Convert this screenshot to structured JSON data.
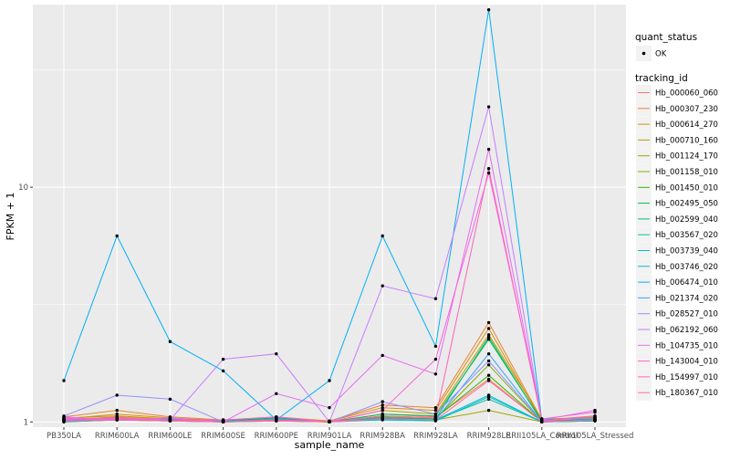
{
  "chart_data": {
    "type": "line",
    "title": "",
    "xlabel": "sample_name",
    "ylabel": "FPKM + 1",
    "y_scale": "log10",
    "ylim": [
      0.95,
      60
    ],
    "yticks": [
      1,
      10
    ],
    "ytick_labels": [
      "1",
      "10"
    ],
    "grid": true,
    "categories": [
      "PB350LA",
      "RRIM600LA",
      "RRIM600LE",
      "RRIM600SE",
      "RRIM600PE",
      "RRIM901LA",
      "RRIM928BA",
      "RRIM928LA",
      "RRIM928LE",
      "RRII105LA_Control",
      "RRII105LA_Stressed"
    ],
    "tick_labels": [
      "PB350LA",
      "RRIM600LA",
      "RRIM600LE",
      "RRIM600SE",
      "RRIM600PE",
      "RRIM901LA",
      "RRIM928BA",
      "RRIM928LA",
      "RRIM928LE",
      "RRII105LA_Control",
      "RRII105LA_Stressed"
    ],
    "legends": [
      {
        "title": "quant_status",
        "entries": [
          "OK"
        ]
      },
      {
        "title": "tracking_id",
        "entries": [
          "Hb_000060_060",
          "Hb_000307_230",
          "Hb_000614_270",
          "Hb_000710_160",
          "Hb_001124_170",
          "Hb_001158_010",
          "Hb_001450_010",
          "Hb_002495_050",
          "Hb_002599_040",
          "Hb_003567_020",
          "Hb_003739_040",
          "Hb_003746_020",
          "Hb_006474_010",
          "Hb_021374_020",
          "Hb_028527_010",
          "Hb_062192_060",
          "Hb_104735_010",
          "Hb_143004_010",
          "Hb_154997_010",
          "Hb_180367_010"
        ]
      }
    ],
    "series": [
      {
        "name": "Hb_000060_060",
        "color": "#F8766D",
        "values": [
          1.02,
          1.05,
          1.03,
          1.0,
          1.02,
          1.0,
          1.08,
          1.05,
          1.52,
          1.0,
          1.04
        ]
      },
      {
        "name": "Hb_000307_230",
        "color": "#EA8331",
        "values": [
          1.05,
          1.12,
          1.05,
          1.02,
          1.05,
          1.01,
          1.18,
          1.15,
          2.65,
          1.02,
          1.06
        ]
      },
      {
        "name": "Hb_000614_270",
        "color": "#D89000",
        "values": [
          1.03,
          1.08,
          1.04,
          1.01,
          1.04,
          1.01,
          1.15,
          1.12,
          2.5,
          1.01,
          1.05
        ]
      },
      {
        "name": "Hb_000710_160",
        "color": "#C09B00",
        "values": [
          1.04,
          1.06,
          1.03,
          1.02,
          1.03,
          1.0,
          1.12,
          1.08,
          2.35,
          1.03,
          1.04
        ]
      },
      {
        "name": "Hb_001124_170",
        "color": "#A3A500",
        "values": [
          1.0,
          1.02,
          1.01,
          1.0,
          1.01,
          1.0,
          1.03,
          1.02,
          1.12,
          1.0,
          1.01
        ]
      },
      {
        "name": "Hb_001158_010",
        "color": "#7CAE00",
        "values": [
          1.02,
          1.03,
          1.02,
          1.0,
          1.02,
          1.0,
          1.05,
          1.03,
          1.75,
          1.0,
          1.02
        ]
      },
      {
        "name": "Hb_001450_010",
        "color": "#39B600",
        "values": [
          1.01,
          1.02,
          1.02,
          1.01,
          1.03,
          1.0,
          1.06,
          1.04,
          1.58,
          1.0,
          1.02
        ]
      },
      {
        "name": "Hb_002495_050",
        "color": "#00BB4E",
        "values": [
          1.03,
          1.04,
          1.02,
          1.01,
          1.04,
          1.0,
          1.08,
          1.06,
          2.25,
          1.01,
          1.03
        ]
      },
      {
        "name": "Hb_002599_040",
        "color": "#00BF7D",
        "values": [
          1.02,
          1.03,
          1.02,
          1.0,
          1.02,
          1.0,
          1.04,
          1.03,
          2.3,
          1.0,
          1.02
        ]
      },
      {
        "name": "Hb_003567_020",
        "color": "#00C1A3",
        "values": [
          1.01,
          1.02,
          1.01,
          1.0,
          1.02,
          1.0,
          1.03,
          1.02,
          1.25,
          1.0,
          1.01
        ]
      },
      {
        "name": "Hb_003739_040",
        "color": "#00BFC4",
        "values": [
          1.0,
          1.02,
          1.01,
          1.0,
          1.01,
          1.0,
          1.02,
          1.01,
          1.28,
          1.0,
          1.01
        ]
      },
      {
        "name": "Hb_003746_020",
        "color": "#00BAE0",
        "values": [
          1.02,
          1.03,
          1.02,
          1.01,
          1.02,
          1.0,
          1.04,
          1.02,
          1.3,
          1.0,
          1.02
        ]
      },
      {
        "name": "Hb_006474_010",
        "color": "#00B0F6",
        "values": [
          1.5,
          6.2,
          2.2,
          1.65,
          1.02,
          1.5,
          6.2,
          2.1,
          57.0,
          1.02,
          1.04
        ]
      },
      {
        "name": "Hb_021374_020",
        "color": "#35A2FF",
        "values": [
          1.01,
          1.02,
          1.03,
          1.0,
          1.03,
          1.0,
          1.03,
          1.02,
          1.95,
          1.0,
          1.02
        ]
      },
      {
        "name": "Hb_028527_010",
        "color": "#9590FF",
        "values": [
          1.06,
          1.3,
          1.25,
          1.0,
          1.02,
          1.0,
          1.22,
          1.08,
          1.82,
          1.0,
          1.02
        ]
      },
      {
        "name": "Hb_062192_060",
        "color": "#C77CFF",
        "values": [
          1.04,
          1.02,
          1.02,
          1.85,
          1.95,
          1.0,
          3.8,
          3.35,
          22.0,
          1.01,
          1.04
        ]
      },
      {
        "name": "Hb_104735_010",
        "color": "#E76BF3",
        "values": [
          1.05,
          1.02,
          1.04,
          1.0,
          1.32,
          1.15,
          1.92,
          1.6,
          14.5,
          1.02,
          1.12
        ]
      },
      {
        "name": "Hb_143004_010",
        "color": "#FA62DB",
        "values": [
          1.03,
          1.04,
          1.02,
          1.02,
          1.05,
          1.0,
          1.12,
          1.85,
          11.5,
          1.03,
          1.1
        ]
      },
      {
        "name": "Hb_154997_010",
        "color": "#FF62BC",
        "values": [
          1.02,
          1.03,
          1.02,
          1.0,
          1.02,
          1.0,
          1.06,
          1.04,
          12.0,
          1.01,
          1.06
        ]
      },
      {
        "name": "Hb_180367_010",
        "color": "#FF6C91",
        "values": [
          1.01,
          1.02,
          1.01,
          1.0,
          1.01,
          1.0,
          1.03,
          1.02,
          1.5,
          1.0,
          1.02
        ]
      }
    ]
  }
}
